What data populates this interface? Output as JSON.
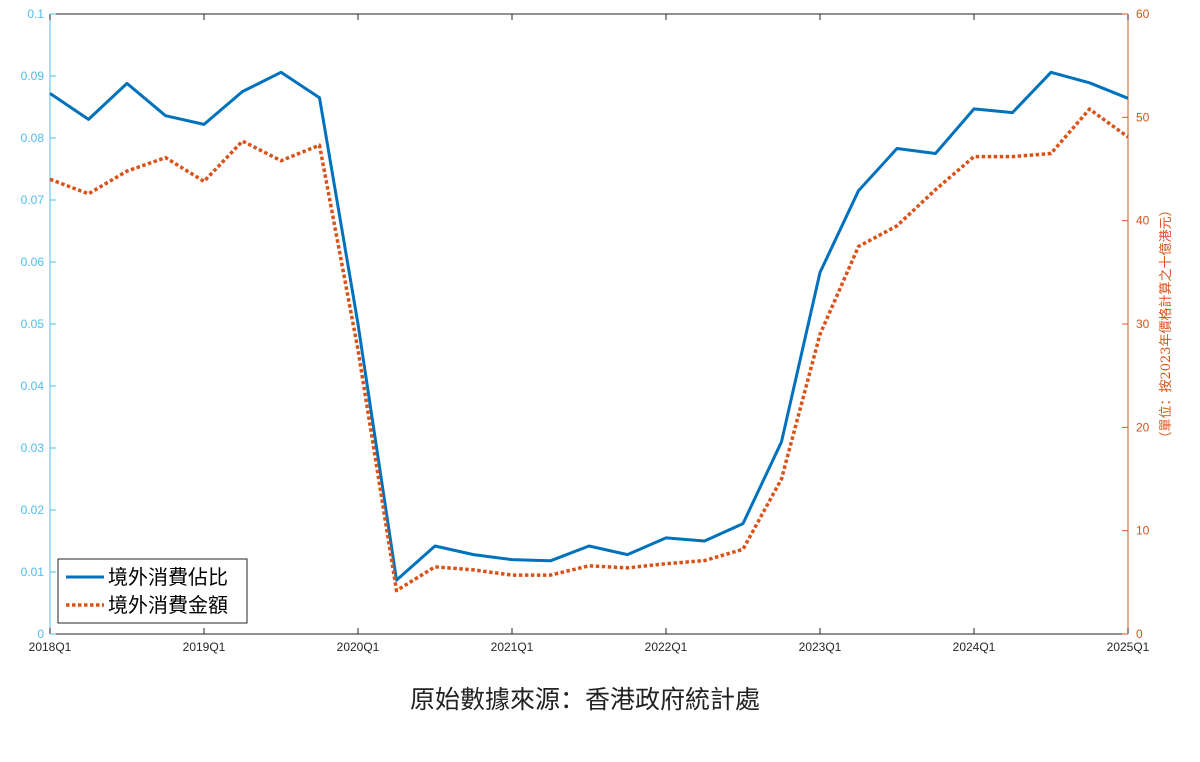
{
  "chart_data": {
    "type": "line",
    "x": [
      "2018Q1",
      "2018Q2",
      "2018Q3",
      "2018Q4",
      "2019Q1",
      "2019Q2",
      "2019Q3",
      "2019Q4",
      "2020Q1",
      "2020Q2",
      "2020Q3",
      "2020Q4",
      "2021Q1",
      "2021Q2",
      "2021Q3",
      "2021Q4",
      "2022Q1",
      "2022Q2",
      "2022Q3",
      "2022Q4",
      "2023Q1",
      "2023Q2",
      "2023Q3",
      "2023Q4",
      "2024Q1",
      "2024Q2",
      "2024Q3",
      "2024Q4",
      "2025Q1"
    ],
    "x_tick_labels": [
      "2018Q1",
      "2019Q1",
      "2020Q1",
      "2021Q1",
      "2022Q1",
      "2023Q1",
      "2024Q1",
      "2025Q1"
    ],
    "series": [
      {
        "name": "境外消費佔比",
        "axis": "left",
        "style": "solid",
        "color": "#0072BD",
        "values": [
          0.0872,
          0.083,
          0.0888,
          0.0836,
          0.0822,
          0.0875,
          0.0906,
          0.0865,
          0.05,
          0.0087,
          0.0142,
          0.0128,
          0.012,
          0.0118,
          0.0142,
          0.0128,
          0.0155,
          0.015,
          0.0178,
          0.031,
          0.0583,
          0.0715,
          0.0783,
          0.0775,
          0.0847,
          0.0841,
          0.0906,
          0.0889,
          0.0864
        ]
      },
      {
        "name": "境外消費金額",
        "axis": "right",
        "style": "dotted",
        "color": "#D95319",
        "values": [
          44.0,
          42.6,
          44.8,
          46.1,
          43.8,
          47.7,
          45.8,
          47.3,
          27.5,
          4.2,
          6.5,
          6.2,
          5.7,
          5.7,
          6.6,
          6.4,
          6.8,
          7.1,
          8.2,
          15.0,
          29.0,
          37.5,
          39.5,
          43.0,
          46.2,
          46.2,
          46.5,
          50.8,
          48.1
        ]
      }
    ],
    "y_left": {
      "lim": [
        0,
        0.1
      ],
      "ticks": [
        "0",
        "0.01",
        "0.02",
        "0.03",
        "0.04",
        "0.05",
        "0.06",
        "0.07",
        "0.08",
        "0.09",
        "0.1"
      ]
    },
    "y_right": {
      "lim": [
        0,
        60
      ],
      "ticks": [
        "0",
        "10",
        "20",
        "30",
        "40",
        "50",
        "60"
      ],
      "label": "（單位：按2023年價格計算之十億港元）"
    },
    "legend": {
      "placement": "bottom-left"
    },
    "grid": false,
    "box": true
  },
  "colors": {
    "left_axis": "#4DBEEE",
    "right_axis": "#D95319",
    "frame": "#262626"
  },
  "source_note": "原始數據來源：香港政府統計處"
}
